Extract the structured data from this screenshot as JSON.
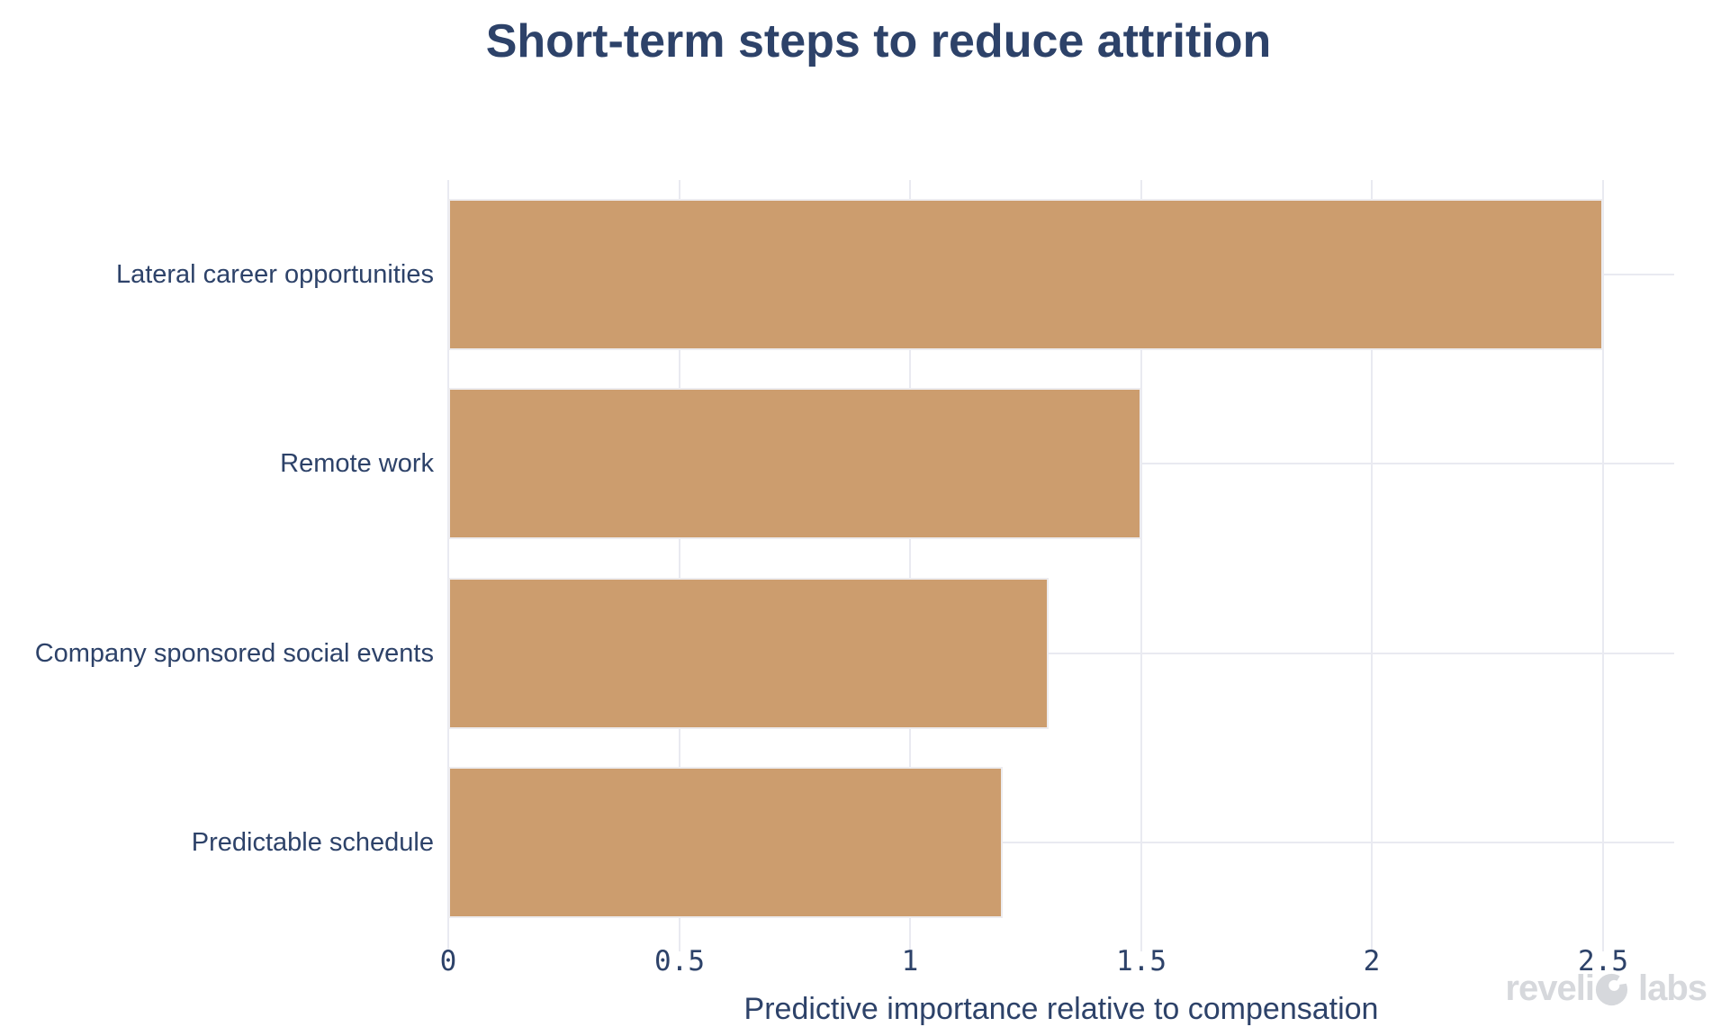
{
  "title": "Short-term steps to reduce attrition",
  "colors": {
    "bar": "#cc9d6e",
    "text": "#2d4269",
    "gridline": "#e9eaf1",
    "logo": "#d6d8dc",
    "background": "#ffffff"
  },
  "chart_data": {
    "type": "bar",
    "orientation": "horizontal",
    "title": "Short-term steps to reduce attrition",
    "categories": [
      "Lateral career opportunities",
      "Remote work",
      "Company sponsored social events",
      "Predictable schedule"
    ],
    "values": [
      2.5,
      1.5,
      1.3,
      1.2
    ],
    "xlabel": "Predictive importance relative to compensation",
    "ylabel": "",
    "xlim": [
      0,
      2.654
    ],
    "xticks": [
      0,
      0.5,
      1,
      1.5,
      2,
      2.5
    ],
    "xtick_labels": [
      "0",
      "0.5",
      "1",
      "1.5",
      "2",
      "2.5"
    ],
    "grid": true,
    "legend": false,
    "bar_color": "#cc9d6e",
    "bar_fraction_of_slot": 0.8
  },
  "branding": {
    "logo_text": "revelio labs",
    "logo_prefix": "reveli",
    "logo_suffix": "labs"
  }
}
